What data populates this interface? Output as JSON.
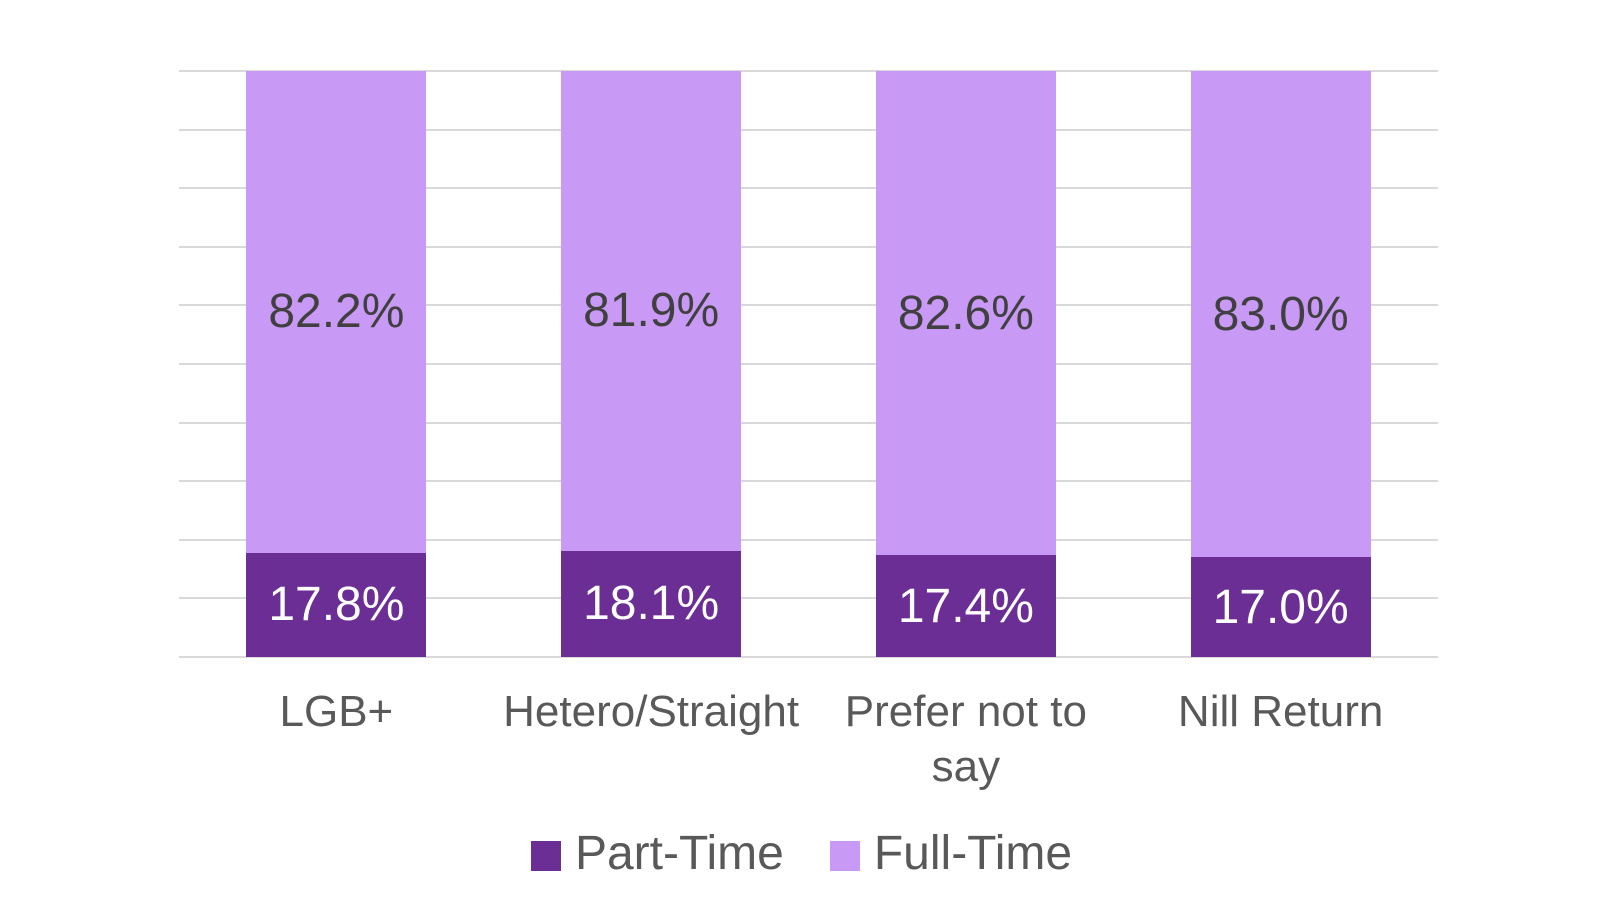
{
  "chart_data": {
    "type": "bar",
    "stacked": true,
    "title": "",
    "xlabel": "",
    "ylabel": "",
    "categories": [
      "LGB+",
      "Hetero/Straight",
      "Prefer not to say",
      "Nill Return"
    ],
    "series": [
      {
        "name": "Part-Time",
        "color": "#6b2e94",
        "label_color": "#ffffff",
        "values": [
          17.8,
          18.1,
          17.4,
          17.0
        ]
      },
      {
        "name": "Full-Time",
        "color": "#c99af5",
        "label_color": "#404040",
        "values": [
          82.2,
          81.9,
          82.6,
          83.0
        ]
      }
    ],
    "value_decimals": 1,
    "value_suffix": "%",
    "ylim": [
      0,
      100
    ],
    "gridline_step": 10,
    "grid": true,
    "y_axis_tick_labels_visible": false,
    "gridline_color": "#d9d9d9",
    "axis_text_color": "#595959",
    "legend_position": "bottom",
    "legend_text_color": "#595959",
    "background_color": "#ffffff"
  }
}
